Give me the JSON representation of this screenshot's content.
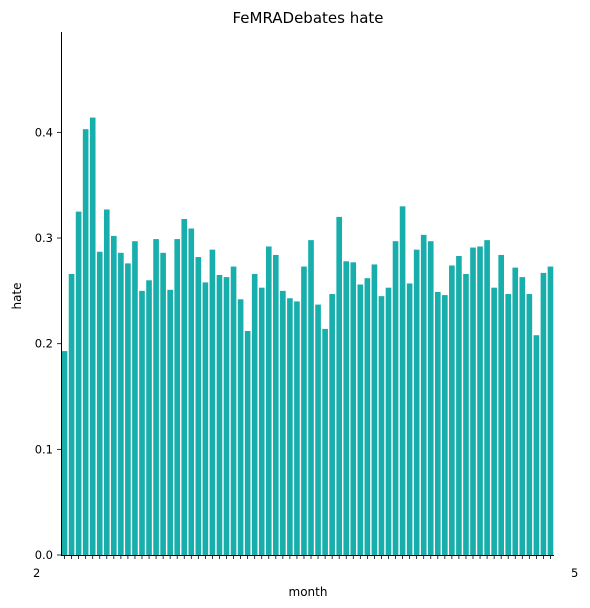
{
  "chart_data": {
    "type": "bar",
    "title": "FeMRADebates hate",
    "xlabel": "month",
    "ylabel": "hate",
    "x_tick_label_first": "2",
    "x_tick_label_last": "5",
    "ylim": [
      0,
      0.495
    ],
    "yticks": [
      "0.0",
      "0.1",
      "0.2",
      "0.3",
      "0.4"
    ],
    "bar_color": "#17aeab",
    "grid": false,
    "values": [
      0.193,
      0.266,
      0.325,
      0.403,
      0.414,
      0.287,
      0.327,
      0.302,
      0.286,
      0.276,
      0.297,
      0.25,
      0.26,
      0.299,
      0.286,
      0.251,
      0.299,
      0.318,
      0.309,
      0.282,
      0.258,
      0.289,
      0.265,
      0.263,
      0.273,
      0.242,
      0.212,
      0.266,
      0.253,
      0.292,
      0.284,
      0.25,
      0.243,
      0.24,
      0.273,
      0.298,
      0.237,
      0.214,
      0.247,
      0.32,
      0.278,
      0.277,
      0.256,
      0.262,
      0.275,
      0.245,
      0.253,
      0.297,
      0.33,
      0.257,
      0.289,
      0.303,
      0.297,
      0.249,
      0.246,
      0.274,
      0.283,
      0.266,
      0.291,
      0.292,
      0.298,
      0.253,
      0.284,
      0.247,
      0.272,
      0.263,
      0.247,
      0.208,
      0.267,
      0.273
    ]
  }
}
